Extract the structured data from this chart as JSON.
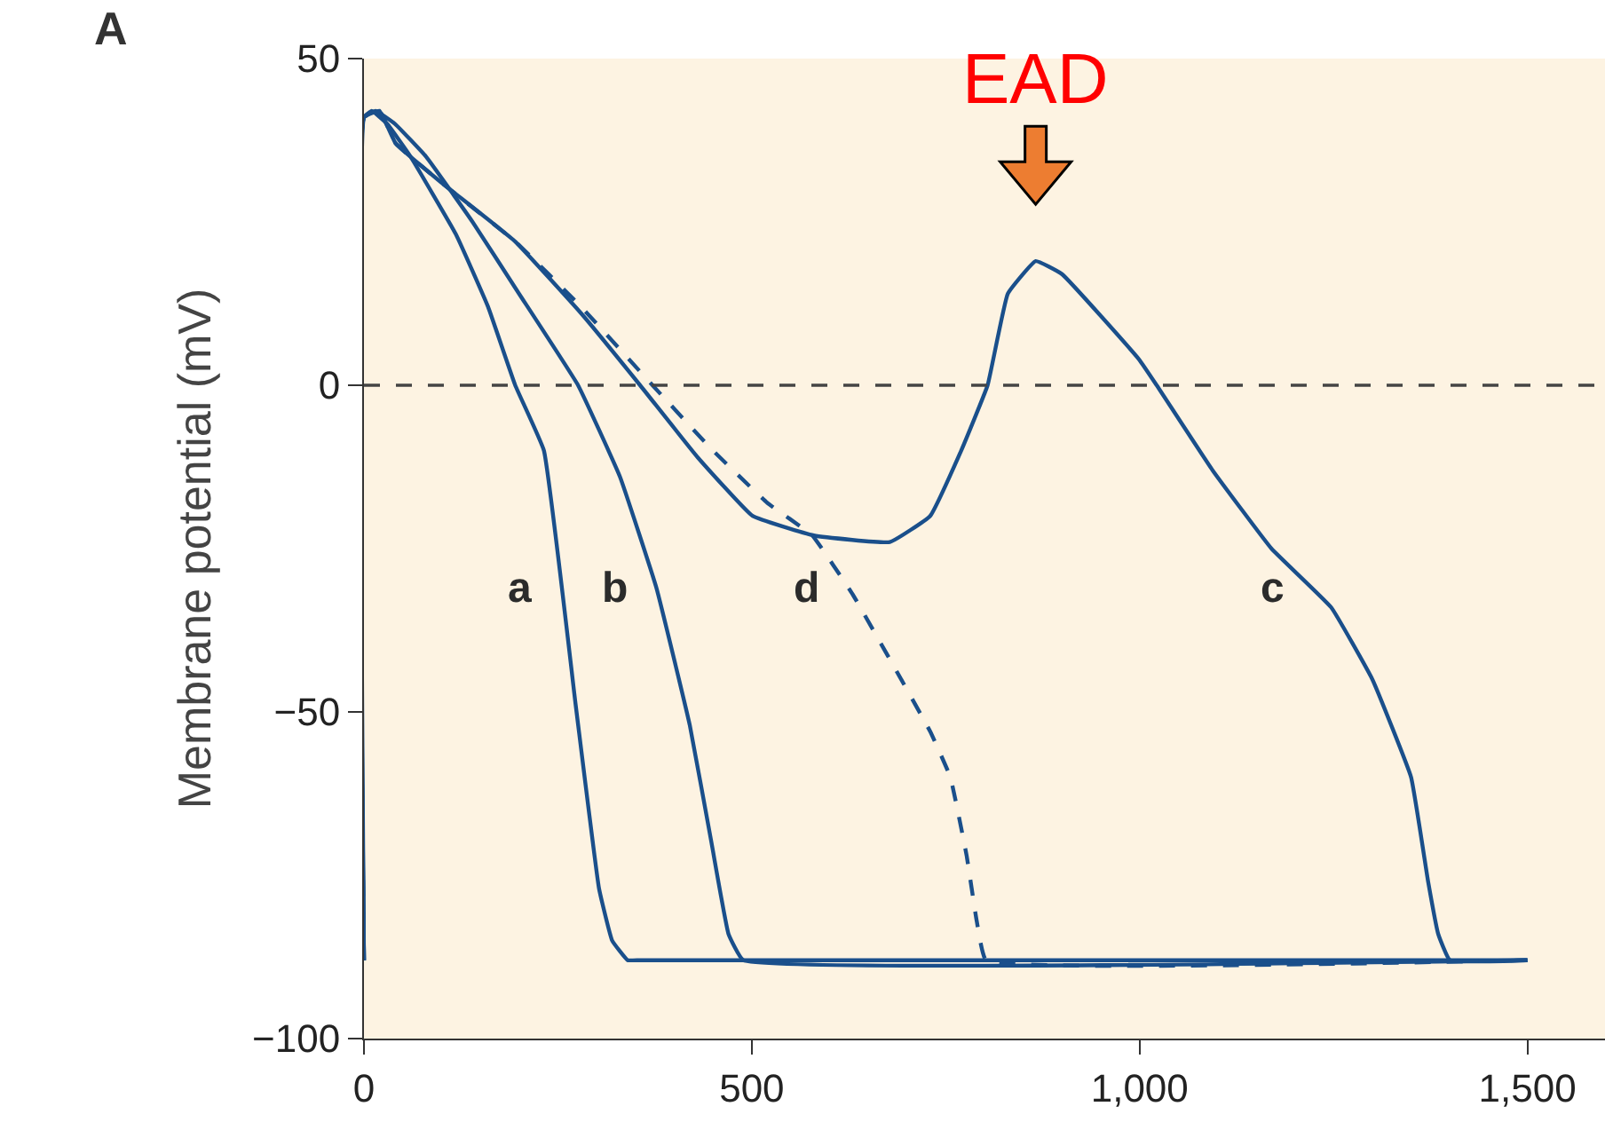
{
  "chart_data": {
    "type": "line",
    "ylabel": "Membrane potential (mV)",
    "xlim": [
      0,
      1600
    ],
    "ylim": [
      -100,
      50
    ],
    "xticks": [
      0,
      500,
      {
        "value": 1000,
        "label": "1,000"
      },
      {
        "value": 1500,
        "label": "1,500"
      }
    ],
    "yticks": [
      {
        "value": -100,
        "label": "−100"
      },
      {
        "value": -50,
        "label": "−50"
      },
      0,
      50
    ],
    "grid": false,
    "legend": false,
    "marker": "none",
    "series": [
      {
        "name": "a",
        "color": "#1a4f8b",
        "line_style": "solid",
        "x": [
          0,
          0,
          10,
          30,
          60,
          119,
          160,
          195,
          232,
          273,
          303,
          320,
          340,
          356,
          1500
        ],
        "values": [
          -88,
          41,
          42,
          40,
          35,
          23,
          12,
          0,
          -10,
          -49,
          -77,
          -85,
          -88,
          -88,
          -88
        ]
      },
      {
        "name": "b",
        "color": "#1a4f8b",
        "line_style": "solid",
        "x": [
          0,
          0,
          15,
          40,
          80,
          140,
          200,
          276,
          330,
          377,
          420,
          448,
          470,
          489,
          1500
        ],
        "values": [
          -88,
          41,
          42,
          40,
          35,
          25,
          14,
          0,
          -14,
          -31,
          -52,
          -70,
          -84,
          -88,
          -88
        ]
      },
      {
        "name": "c",
        "color": "#1a4f8b",
        "line_style": "solid",
        "x": [
          0,
          0,
          20,
          41,
          100,
          195,
          280,
          356,
          430,
          501,
          580,
          678,
          730,
          770,
          804,
          830,
          866,
          900,
          999,
          1022,
          1094,
          1170,
          1247,
          1300,
          1350,
          1372,
          1385,
          1400,
          1500
        ],
        "values": [
          -88,
          41,
          42,
          37,
          31,
          22,
          11,
          0,
          -11,
          -20,
          -23,
          -24,
          -20,
          -10,
          0,
          14,
          19,
          17,
          4,
          0,
          -13,
          -25,
          -34,
          -45,
          -60,
          -76,
          -84,
          -88,
          -88
        ]
      },
      {
        "name": "d",
        "color": "#1a4f8b",
        "line_style": "dashed",
        "x": [
          0,
          0,
          20,
          41,
          100,
          195,
          280,
          372,
          450,
          520,
          578,
          630,
          683,
          730,
          756,
          777,
          790,
          802,
          1500
        ],
        "values": [
          -88,
          41,
          42,
          37,
          31,
          22,
          12,
          0,
          -10,
          -18,
          -23,
          -32,
          -43,
          -53,
          -60,
          -72,
          -82,
          -88,
          -88
        ]
      }
    ],
    "ref_lines": [
      {
        "axis": "y",
        "value": 0,
        "color": "#444444",
        "line_style": "dashed"
      }
    ],
    "annotations": [
      {
        "text": "EAD",
        "x": 866,
        "y": 19
      },
      "A"
    ]
  }
}
